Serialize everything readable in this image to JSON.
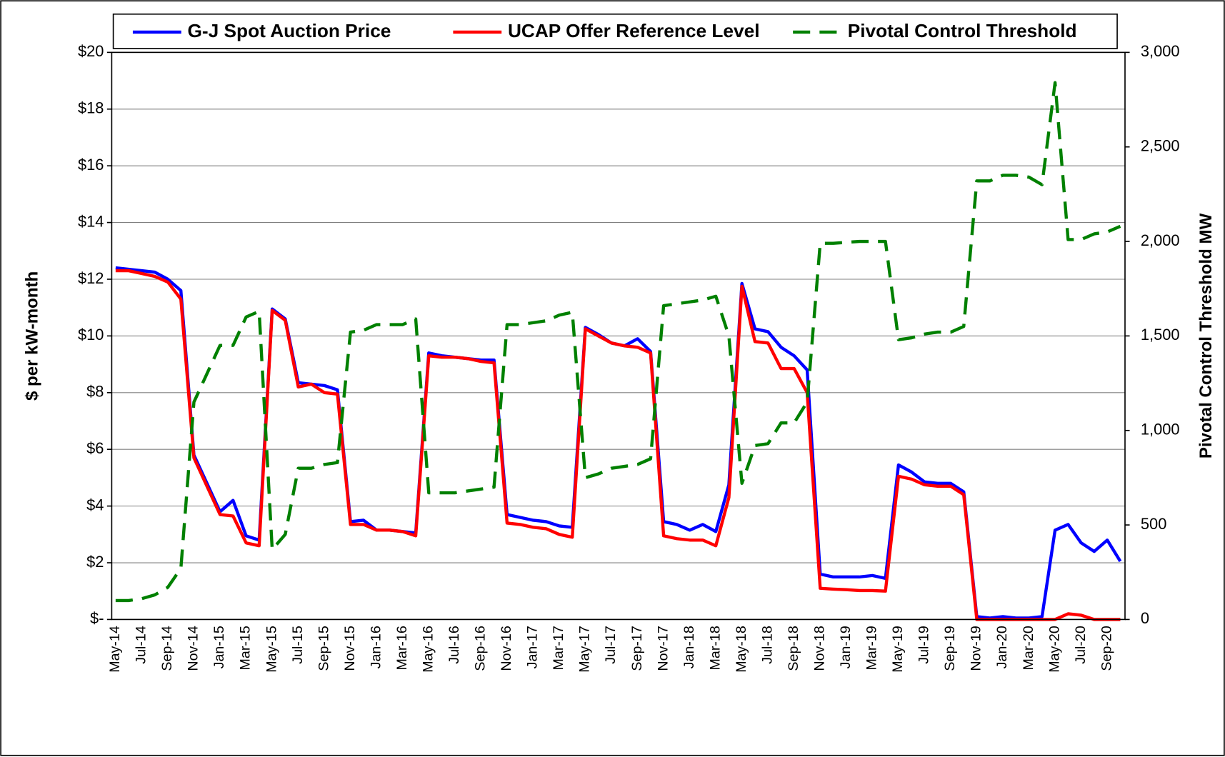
{
  "chart_data": {
    "type": "line",
    "y_label": "$ per kW-month",
    "y2_label": "Pivotal Control Threshold MW",
    "categories": [
      "May-14",
      null,
      "Jul-14",
      null,
      "Sep-14",
      null,
      "Nov-14",
      null,
      "Jan-15",
      null,
      "Mar-15",
      null,
      "May-15",
      null,
      "Jul-15",
      null,
      "Sep-15",
      null,
      "Nov-15",
      null,
      "Jan-16",
      null,
      "Mar-16",
      null,
      "May-16",
      null,
      "Jul-16",
      null,
      "Sep-16",
      null,
      "Nov-16",
      null,
      "Jan-17",
      null,
      "Mar-17",
      null,
      "May-17",
      null,
      "Jul-17",
      null,
      "Sep-17",
      null,
      "Nov-17",
      null,
      "Jan-18",
      null,
      "Mar-18",
      null,
      "May-18",
      null,
      "Jul-18",
      null,
      "Sep-18",
      null,
      "Nov-18",
      null,
      "Jan-19",
      null,
      "Mar-19",
      null,
      "May-19",
      null,
      "Jul-19",
      null,
      "Sep-19",
      null,
      "Nov-19",
      null,
      "Jan-20",
      null,
      "Mar-20",
      null,
      "May-20",
      null,
      "Jul-20",
      null,
      "Sep-20",
      null
    ],
    "series": [
      {
        "name": "G-J Spot Auction Price",
        "color": "#0000ff",
        "style": "solid",
        "values": [
          12.4,
          12.35,
          12.3,
          12.25,
          12.0,
          11.6,
          5.8,
          4.8,
          3.8,
          4.2,
          2.95,
          2.8,
          10.95,
          10.6,
          8.35,
          8.3,
          8.25,
          8.1,
          3.45,
          3.5,
          3.15,
          3.15,
          3.1,
          3.05,
          9.4,
          9.3,
          9.25,
          9.2,
          9.15,
          9.15,
          3.7,
          3.6,
          3.5,
          3.45,
          3.3,
          3.25,
          10.3,
          10.05,
          9.75,
          9.65,
          9.9,
          9.45,
          3.45,
          3.35,
          3.15,
          3.35,
          3.1,
          4.75,
          11.85,
          10.25,
          10.15,
          9.6,
          9.3,
          8.8,
          1.6,
          1.5,
          1.5,
          1.5,
          1.55,
          1.45,
          5.45,
          5.2,
          4.85,
          4.8,
          4.8,
          4.5,
          0.1,
          0.05,
          0.1,
          0.05,
          0.05,
          0.1,
          3.15,
          3.35,
          2.7,
          2.4,
          2.8,
          2.05
        ]
      },
      {
        "name": "UCAP Offer Reference Level",
        "color": "#ff0000",
        "style": "solid",
        "values": [
          12.3,
          12.3,
          12.2,
          12.1,
          11.9,
          11.3,
          5.7,
          4.7,
          3.7,
          3.65,
          2.7,
          2.6,
          10.9,
          10.55,
          8.2,
          8.3,
          8.0,
          7.95,
          3.35,
          3.35,
          3.15,
          3.15,
          3.1,
          2.95,
          9.3,
          9.25,
          9.25,
          9.2,
          9.1,
          9.05,
          3.4,
          3.35,
          3.25,
          3.2,
          3.0,
          2.9,
          10.25,
          10.0,
          9.75,
          9.65,
          9.6,
          9.4,
          2.95,
          2.85,
          2.8,
          2.8,
          2.6,
          4.3,
          11.75,
          9.8,
          9.75,
          8.85,
          8.85,
          8.0,
          1.1,
          1.07,
          1.05,
          1.02,
          1.02,
          1.0,
          5.05,
          4.95,
          4.75,
          4.7,
          4.7,
          4.4,
          0,
          0,
          0,
          0,
          0,
          0,
          0,
          0.2,
          0.15,
          0,
          0,
          0
        ]
      },
      {
        "name": "Pivotal Control Threshold",
        "color": "#008000",
        "style": "dashed",
        "axis": "y2",
        "values": [
          100,
          100,
          110,
          130,
          170,
          270,
          1150,
          1300,
          1450,
          1450,
          1600,
          1630,
          370,
          450,
          800,
          800,
          820,
          830,
          1520,
          1530,
          1560,
          1560,
          1560,
          1590,
          670,
          670,
          670,
          680,
          690,
          700,
          1560,
          1560,
          1570,
          1580,
          1610,
          1625,
          750,
          770,
          800,
          810,
          820,
          850,
          1660,
          1670,
          1680,
          1690,
          1710,
          1500,
          720,
          920,
          930,
          1040,
          1040,
          1150,
          1990,
          1990,
          1995,
          2000,
          2000,
          2000,
          1480,
          1490,
          1510,
          1520,
          1520,
          1550,
          2320,
          2320,
          2350,
          2350,
          2340,
          2300,
          2840,
          2010,
          2010,
          2040,
          2050,
          2080
        ]
      }
    ],
    "ylim": [
      0,
      20
    ],
    "yticks": [
      {
        "value": 0,
        "label": "$-"
      },
      {
        "value": 2,
        "label": "$2"
      },
      {
        "value": 4,
        "label": "$4"
      },
      {
        "value": 6,
        "label": "$6"
      },
      {
        "value": 8,
        "label": "$8"
      },
      {
        "value": 10,
        "label": "$10"
      },
      {
        "value": 12,
        "label": "$12"
      },
      {
        "value": 14,
        "label": "$14"
      },
      {
        "value": 16,
        "label": "$16"
      },
      {
        "value": 18,
        "label": "$18"
      },
      {
        "value": 20,
        "label": "$20"
      }
    ],
    "y2lim": [
      0,
      3000
    ],
    "y2ticks": [
      0,
      500,
      {
        "value": 1000,
        "label": "1,000"
      },
      {
        "value": 1500,
        "label": "1,500"
      },
      {
        "value": 2000,
        "label": "2,000"
      },
      {
        "value": 2500,
        "label": "2,500"
      },
      {
        "value": 3000,
        "label": "3,000"
      }
    ],
    "grid": true,
    "legend": "top"
  }
}
